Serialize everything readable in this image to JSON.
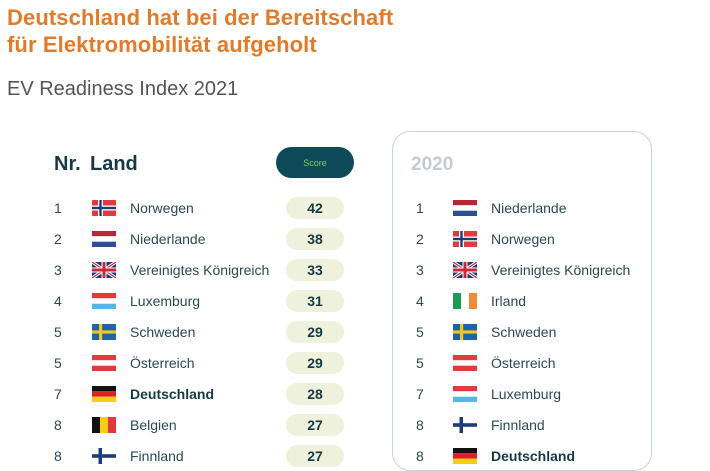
{
  "header": {
    "title_line1": "Deutschland hat bei der Bereitschaft",
    "title_line2": "für Elektromobilität aufgeholt",
    "subtitle": "EV Readiness Index 2021"
  },
  "table_2021": {
    "col_nr": "Nr.",
    "col_land": "Land",
    "col_score": "Score",
    "rows": [
      {
        "rank": "1",
        "flag": "norway-flag",
        "country": "Norwegen",
        "score": "42",
        "bold": false
      },
      {
        "rank": "2",
        "flag": "netherlands-flag",
        "country": "Niederlande",
        "score": "38",
        "bold": false
      },
      {
        "rank": "3",
        "flag": "uk-flag",
        "country": "Vereinigtes Königreich",
        "score": "33",
        "bold": false
      },
      {
        "rank": "4",
        "flag": "luxembourg-flag",
        "country": "Luxemburg",
        "score": "31",
        "bold": false
      },
      {
        "rank": "5",
        "flag": "sweden-flag",
        "country": "Schweden",
        "score": "29",
        "bold": false
      },
      {
        "rank": "5",
        "flag": "austria-flag",
        "country": "Österreich",
        "score": "29",
        "bold": false
      },
      {
        "rank": "7",
        "flag": "germany-flag",
        "country": "Deutschland",
        "score": "28",
        "bold": true
      },
      {
        "rank": "8",
        "flag": "belgium-flag",
        "country": "Belgien",
        "score": "27",
        "bold": false
      },
      {
        "rank": "8",
        "flag": "finland-flag",
        "country": "Finnland",
        "score": "27",
        "bold": false
      }
    ]
  },
  "table_2020": {
    "year": "2020",
    "rows": [
      {
        "rank": "1",
        "flag": "netherlands-flag",
        "country": "Niederlande",
        "bold": false
      },
      {
        "rank": "2",
        "flag": "norway-flag",
        "country": "Norwegen",
        "bold": false
      },
      {
        "rank": "3",
        "flag": "uk-flag",
        "country": "Vereinigtes Königreich",
        "bold": false
      },
      {
        "rank": "4",
        "flag": "ireland-flag",
        "country": "Irland",
        "bold": false
      },
      {
        "rank": "5",
        "flag": "sweden-flag",
        "country": "Schweden",
        "bold": false
      },
      {
        "rank": "5",
        "flag": "austria-flag",
        "country": "Österreich",
        "bold": false
      },
      {
        "rank": "7",
        "flag": "luxembourg-flag",
        "country": "Luxemburg",
        "bold": false
      },
      {
        "rank": "8",
        "flag": "finland-flag",
        "country": "Finnland",
        "bold": false
      },
      {
        "rank": "8",
        "flag": "germany-flag",
        "country": "Deutschland",
        "bold": true
      }
    ]
  },
  "colors": {
    "title": "#e07b2c",
    "score_button": "#0d4a57",
    "score_pill": "#eef2dc"
  }
}
